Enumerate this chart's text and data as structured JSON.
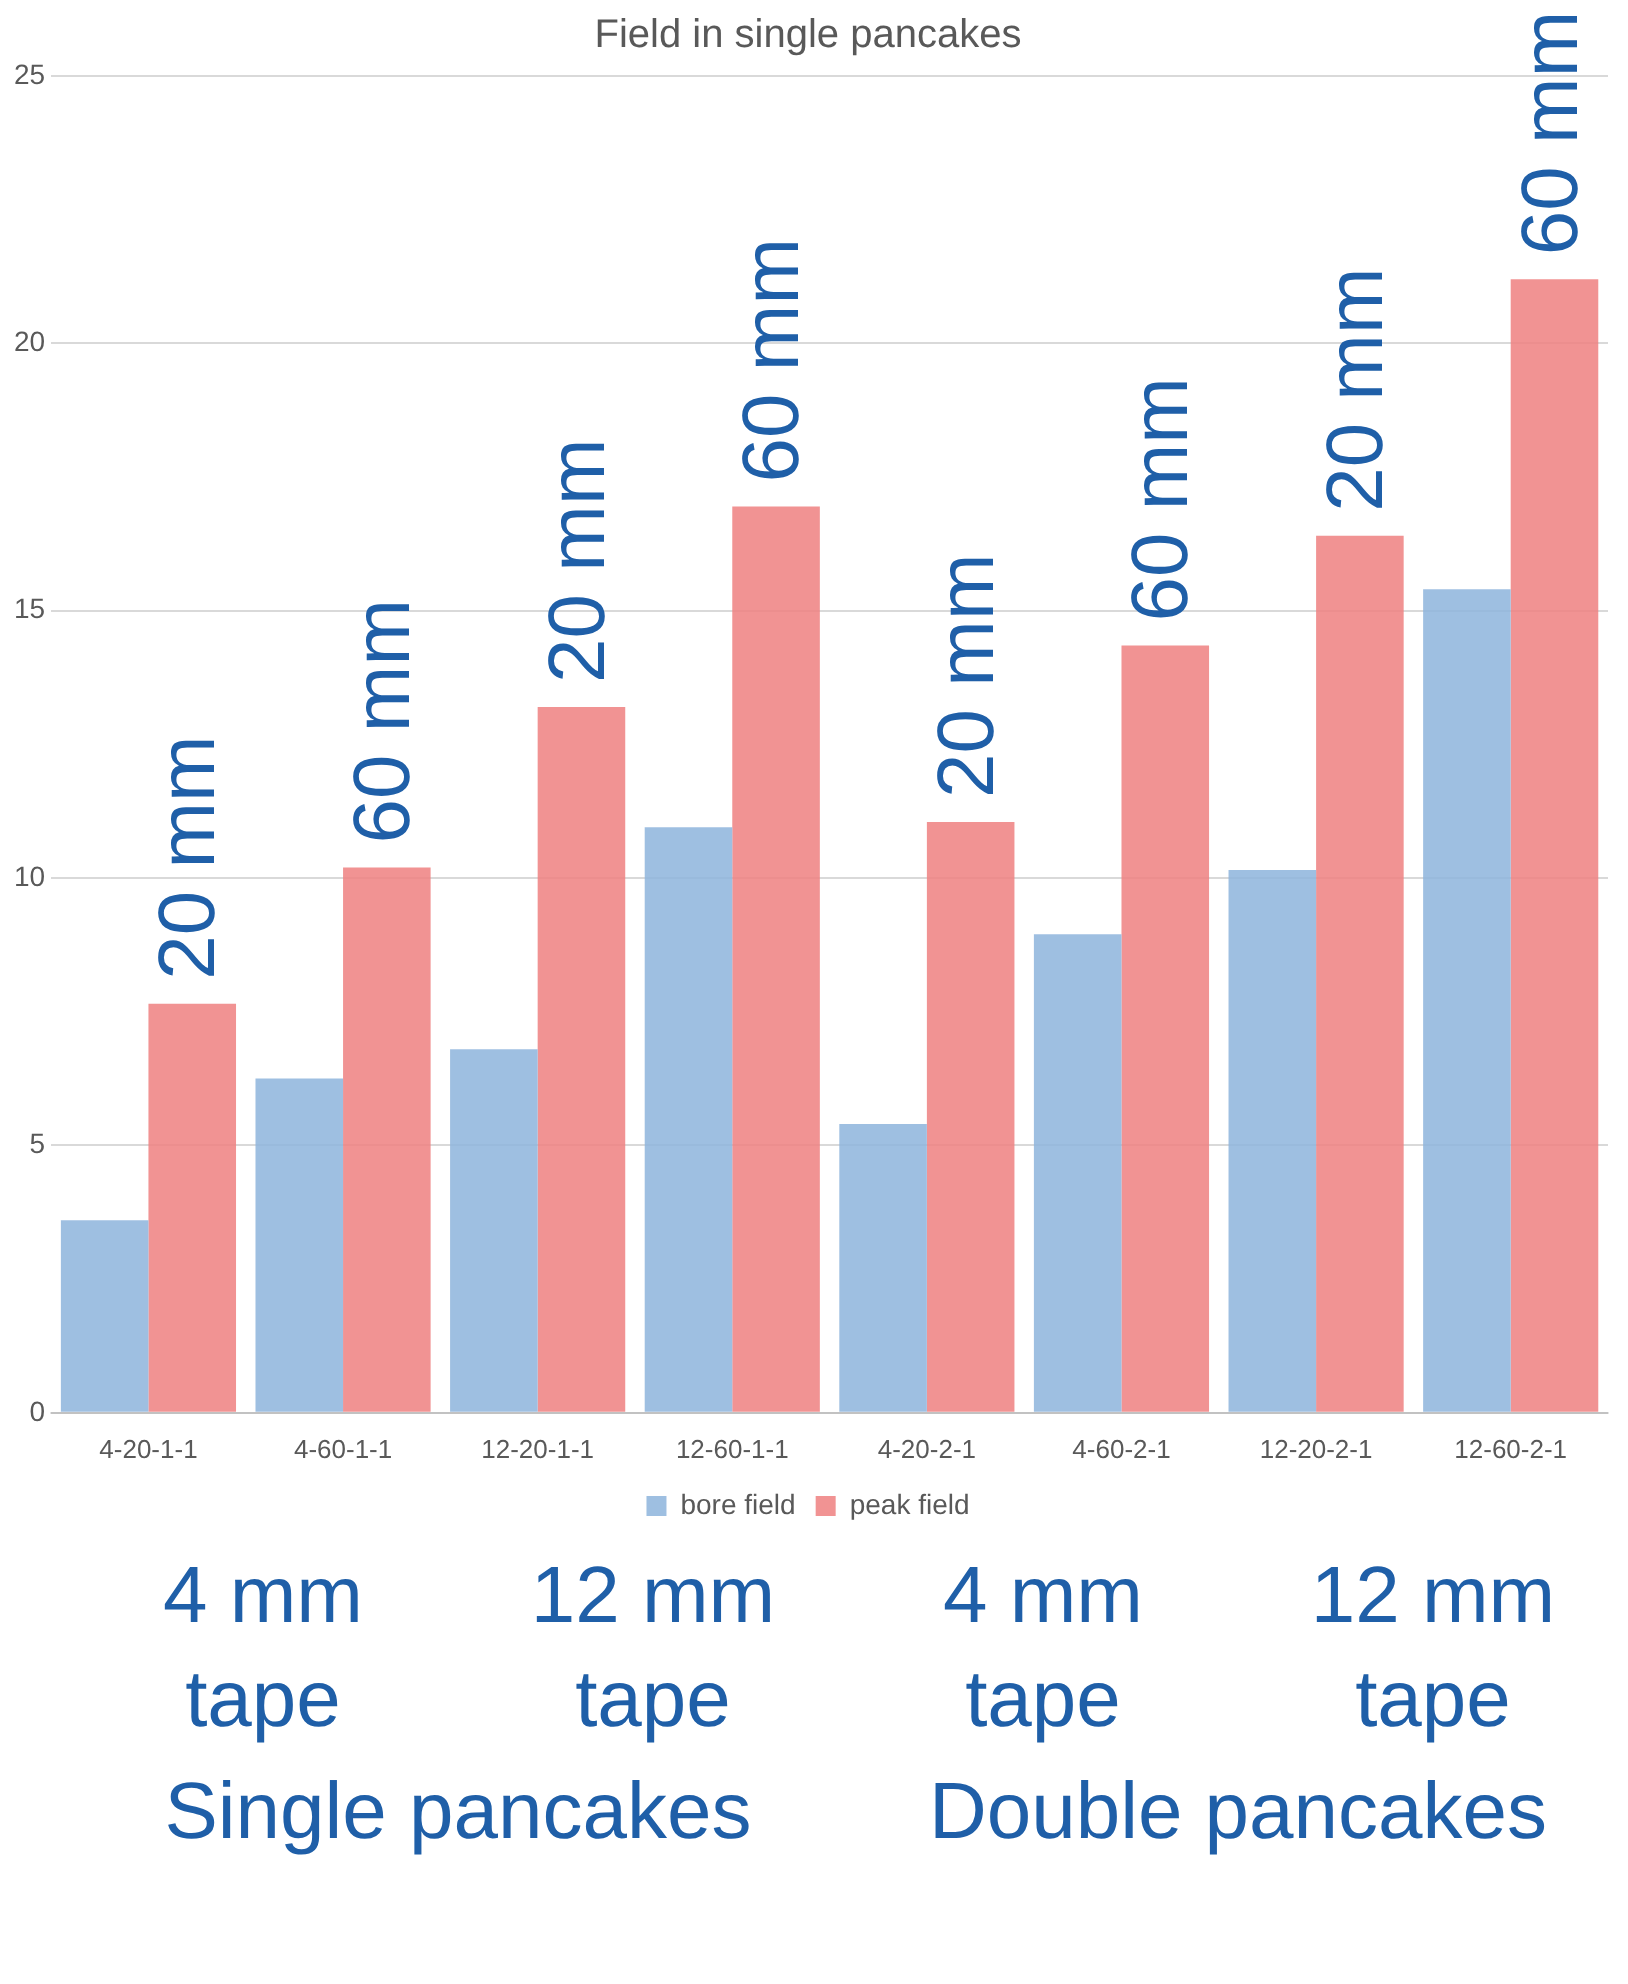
{
  "chart_data": {
    "type": "bar",
    "title": "Field in single pancakes",
    "categories": [
      "4-20-1-1",
      "4-60-1-1",
      "12-20-1-1",
      "12-60-1-1",
      "4-20-2-1",
      "4-60-2-1",
      "12-20-2-1",
      "12-60-2-1"
    ],
    "series": [
      {
        "name": "bore field",
        "color": "#8db4dc",
        "values": [
          3.6,
          6.25,
          6.8,
          10.95,
          5.4,
          8.95,
          10.15,
          15.4
        ]
      },
      {
        "name": "peak field",
        "color": "#ef8080",
        "values": [
          7.65,
          10.2,
          13.2,
          16.95,
          11.05,
          14.35,
          16.4,
          21.2
        ]
      }
    ],
    "ylim": [
      0,
      25
    ],
    "yticks": [
      0,
      5,
      10,
      15,
      20,
      25
    ],
    "grid": "y",
    "legend": "bottom",
    "annotations": [
      {
        "text": "20 mm",
        "x": "4-20-1-1",
        "y": 7.65
      },
      {
        "text": "60 mm",
        "x": "4-60-1-1",
        "y": 10.2
      },
      {
        "text": "20 mm",
        "x": "12-20-1-1",
        "y": 13.2
      },
      {
        "text": "60 mm",
        "x": "12-60-1-1",
        "y": 16.95
      },
      {
        "text": "20 mm",
        "x": "4-20-2-1",
        "y": 11.05
      },
      {
        "text": "60 mm",
        "x": "4-60-2-1",
        "y": 14.35
      },
      {
        "text": "20 mm",
        "x": "12-20-2-1",
        "y": 16.4
      },
      {
        "text": "60 mm",
        "x": "12-60-2-1",
        "y": 21.2
      },
      "4 mm tape",
      "12 mm tape",
      "4 mm tape",
      "12 mm tape",
      "Single pancakes",
      "Double pancakes"
    ]
  }
}
